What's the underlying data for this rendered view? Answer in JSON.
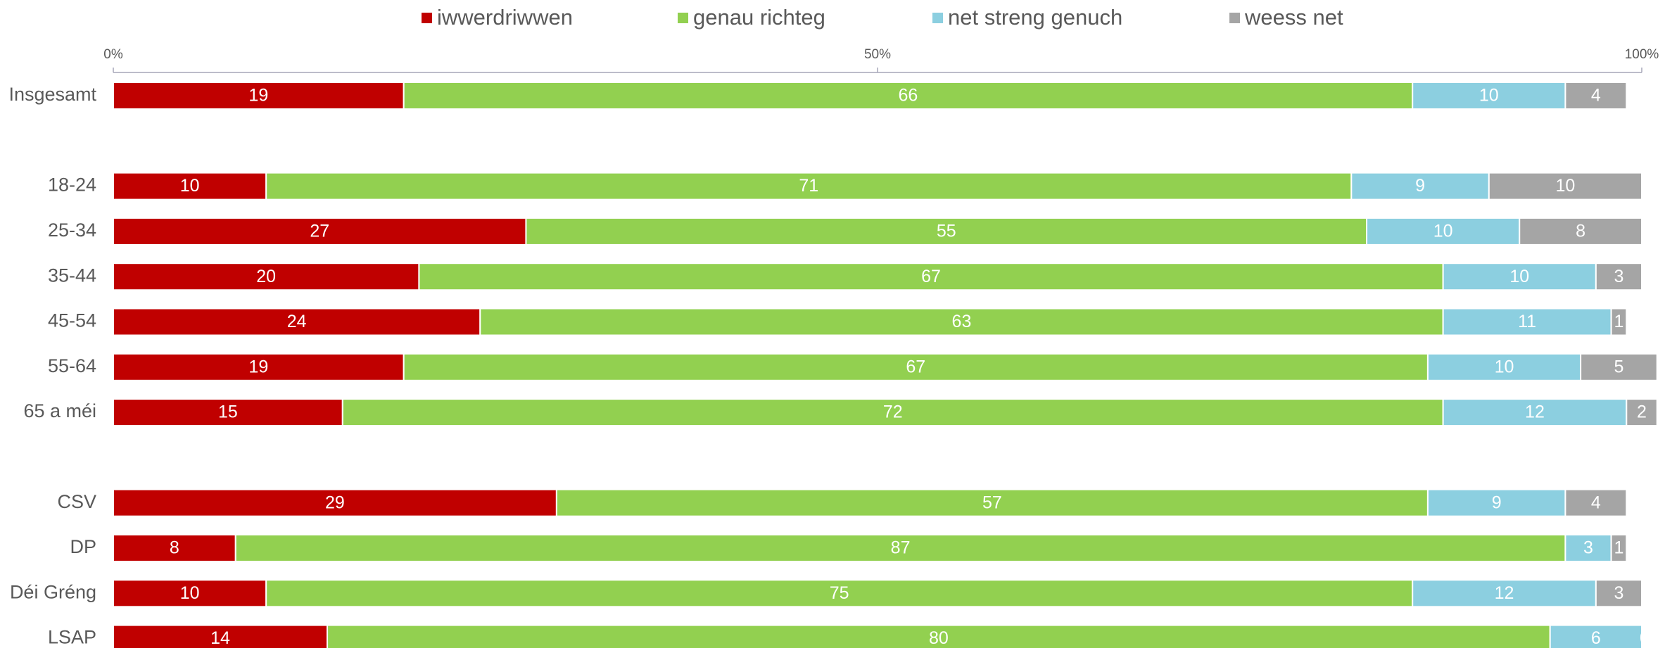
{
  "chart_data": {
    "type": "stacked-bar-horizontal",
    "categories": [
      "Insgesamt",
      null,
      "18-24",
      "25-34",
      "35-44",
      "45-54",
      "55-64",
      "65 a méi",
      null,
      "CSV",
      "DP",
      "Déi Gréng",
      "LSAP"
    ],
    "series": [
      {
        "name": "iwwerdriwwen",
        "color": "#c00000",
        "values": [
          19,
          null,
          10,
          27,
          20,
          24,
          19,
          15,
          null,
          29,
          8,
          10,
          14
        ]
      },
      {
        "name": "genau richteg",
        "color": "#92d050",
        "values": [
          66,
          null,
          71,
          55,
          67,
          63,
          67,
          72,
          null,
          57,
          87,
          75,
          80
        ]
      },
      {
        "name": "net streng genuch",
        "color": "#8ccfe0",
        "values": [
          10,
          null,
          9,
          10,
          10,
          11,
          10,
          12,
          null,
          9,
          3,
          12,
          6
        ]
      },
      {
        "name": "weess net",
        "color": "#a5a5a5",
        "values": [
          4,
          null,
          10,
          8,
          3,
          1,
          5,
          2,
          null,
          4,
          1,
          3,
          0
        ]
      }
    ],
    "xlim": [
      0,
      100
    ],
    "xticks": [
      {
        "value": 0,
        "label": "0%"
      },
      {
        "value": 50,
        "label": "50%"
      },
      {
        "value": 100,
        "label": "100%"
      }
    ],
    "legend": "top"
  }
}
